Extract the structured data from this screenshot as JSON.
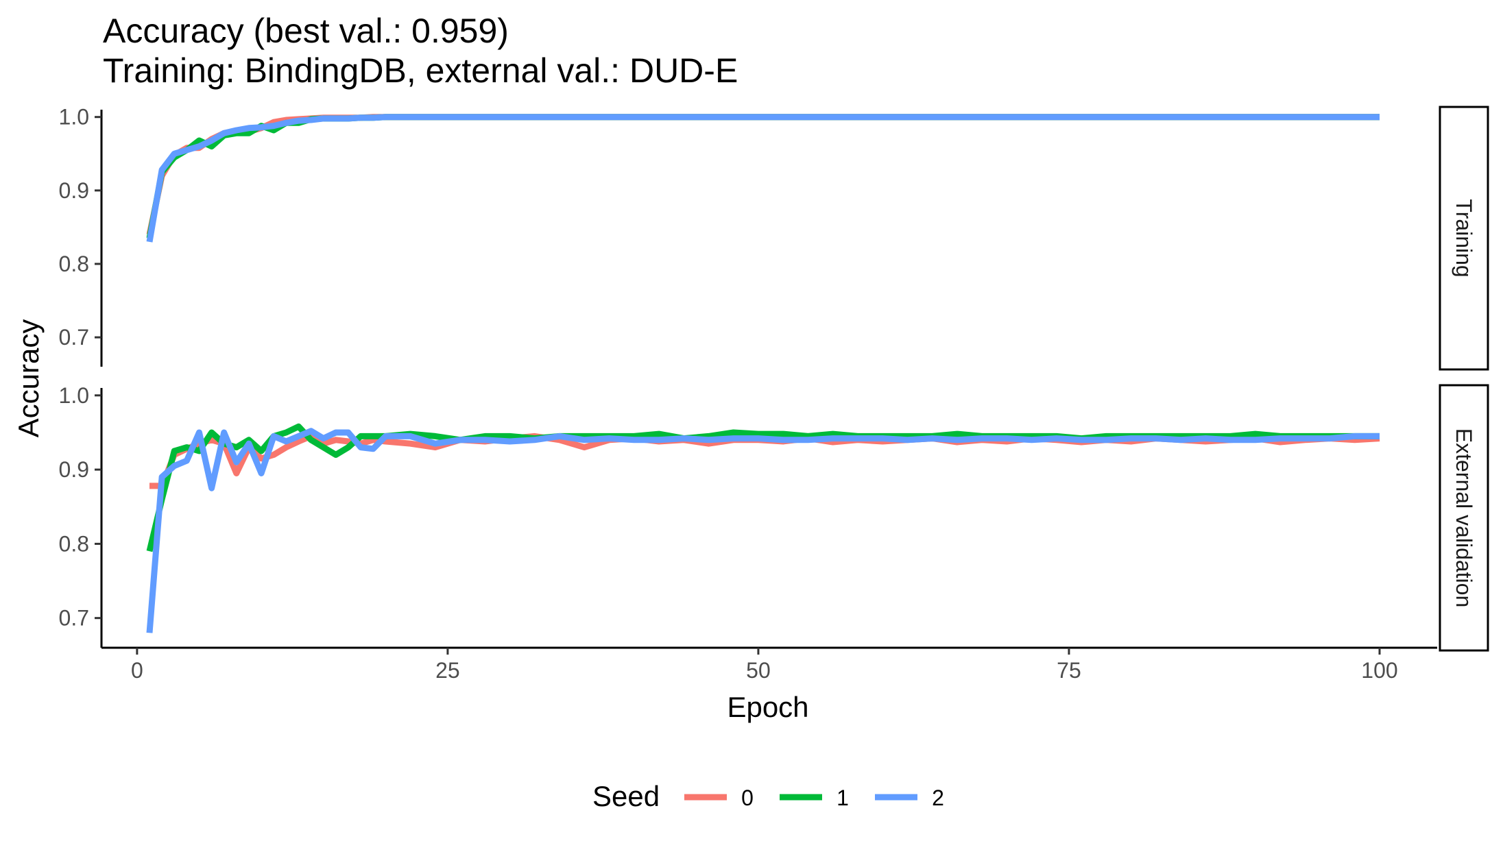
{
  "chart_data": {
    "type": "line",
    "title": "Accuracy (best val.: 0.959)",
    "subtitle": "Training: BindingDB, external val.: DUD-E",
    "xlabel": "Epoch",
    "ylabel": "Accuracy",
    "xlim": [
      1,
      100
    ],
    "x_ticks": [
      0,
      25,
      50,
      75,
      100
    ],
    "ylim": [
      0.66,
      1.01
    ],
    "y_ticks": [
      0.7,
      0.8,
      0.9,
      1.0
    ],
    "y_tick_labels": [
      "0.7",
      "0.8",
      "0.9",
      "1.0"
    ],
    "grid": false,
    "legend_title": "Seed",
    "legend_position": "bottom",
    "facets": [
      {
        "strip_label": "Training",
        "series": [
          {
            "name": "0",
            "color": "#F8766D",
            "x": [
              1,
              2,
              3,
              4,
              5,
              6,
              7,
              8,
              9,
              10,
              11,
              12,
              13,
              14,
              15,
              16,
              17,
              18,
              19,
              20,
              25,
              100
            ],
            "y": [
              0.84,
              0.92,
              0.948,
              0.958,
              0.958,
              0.97,
              0.978,
              0.98,
              0.98,
              0.985,
              0.993,
              0.996,
              0.997,
              0.998,
              0.999,
              0.999,
              0.999,
              0.999,
              1.0,
              1.0,
              1.0,
              1.0
            ]
          },
          {
            "name": "1",
            "color": "#00BA38",
            "x": [
              1,
              2,
              3,
              4,
              5,
              6,
              7,
              8,
              9,
              10,
              11,
              12,
              13,
              14,
              15,
              16,
              17,
              18,
              19,
              20,
              25,
              100
            ],
            "y": [
              0.835,
              0.925,
              0.945,
              0.955,
              0.968,
              0.96,
              0.975,
              0.978,
              0.978,
              0.988,
              0.982,
              0.992,
              0.992,
              0.997,
              0.998,
              0.998,
              0.998,
              0.999,
              0.999,
              1.0,
              1.0,
              1.0
            ]
          },
          {
            "name": "2",
            "color": "#619CFF",
            "x": [
              1,
              2,
              3,
              4,
              5,
              6,
              7,
              8,
              9,
              10,
              11,
              12,
              13,
              14,
              15,
              16,
              17,
              18,
              19,
              20,
              25,
              100
            ],
            "y": [
              0.83,
              0.928,
              0.95,
              0.955,
              0.96,
              0.968,
              0.978,
              0.982,
              0.985,
              0.986,
              0.988,
              0.992,
              0.995,
              0.996,
              0.998,
              0.998,
              0.998,
              0.999,
              0.999,
              1.0,
              1.0,
              1.0
            ]
          }
        ]
      },
      {
        "strip_label": "External validation",
        "series": [
          {
            "name": "0",
            "color": "#F8766D",
            "x": [
              1,
              2,
              3,
              4,
              5,
              6,
              7,
              8,
              9,
              10,
              11,
              12,
              13,
              14,
              15,
              16,
              17,
              18,
              19,
              20,
              22,
              24,
              26,
              28,
              30,
              32,
              34,
              36,
              38,
              40,
              42,
              44,
              46,
              48,
              50,
              52,
              54,
              56,
              58,
              60,
              62,
              64,
              66,
              68,
              70,
              72,
              74,
              76,
              78,
              80,
              82,
              84,
              86,
              88,
              90,
              92,
              94,
              96,
              98,
              100
            ],
            "y": [
              0.878,
              0.878,
              0.92,
              0.928,
              0.935,
              0.94,
              0.935,
              0.895,
              0.93,
              0.915,
              0.92,
              0.93,
              0.938,
              0.945,
              0.935,
              0.94,
              0.938,
              0.935,
              0.94,
              0.938,
              0.935,
              0.93,
              0.94,
              0.938,
              0.942,
              0.945,
              0.94,
              0.93,
              0.94,
              0.942,
              0.938,
              0.94,
              0.935,
              0.94,
              0.94,
              0.938,
              0.942,
              0.937,
              0.94,
              0.938,
              0.94,
              0.942,
              0.937,
              0.94,
              0.938,
              0.942,
              0.94,
              0.937,
              0.94,
              0.938,
              0.942,
              0.94,
              0.938,
              0.94,
              0.942,
              0.937,
              0.94,
              0.942,
              0.94,
              0.942
            ]
          },
          {
            "name": "1",
            "color": "#00BA38",
            "x": [
              1,
              2,
              3,
              4,
              5,
              6,
              7,
              8,
              9,
              10,
              11,
              12,
              13,
              14,
              15,
              16,
              17,
              18,
              19,
              20,
              22,
              24,
              26,
              28,
              30,
              32,
              34,
              36,
              38,
              40,
              42,
              44,
              46,
              48,
              50,
              52,
              54,
              56,
              58,
              60,
              62,
              64,
              66,
              68,
              70,
              72,
              74,
              76,
              78,
              80,
              82,
              84,
              86,
              88,
              90,
              92,
              94,
              96,
              98,
              100
            ],
            "y": [
              0.79,
              0.86,
              0.925,
              0.93,
              0.925,
              0.95,
              0.935,
              0.93,
              0.94,
              0.925,
              0.945,
              0.95,
              0.958,
              0.94,
              0.93,
              0.92,
              0.93,
              0.945,
              0.945,
              0.945,
              0.948,
              0.945,
              0.94,
              0.945,
              0.945,
              0.942,
              0.945,
              0.945,
              0.945,
              0.945,
              0.948,
              0.942,
              0.945,
              0.95,
              0.948,
              0.948,
              0.945,
              0.948,
              0.945,
              0.945,
              0.945,
              0.945,
              0.948,
              0.945,
              0.945,
              0.945,
              0.945,
              0.942,
              0.945,
              0.945,
              0.945,
              0.945,
              0.945,
              0.945,
              0.948,
              0.945,
              0.945,
              0.945,
              0.945,
              0.945
            ]
          },
          {
            "name": "2",
            "color": "#619CFF",
            "x": [
              1,
              2,
              3,
              4,
              5,
              6,
              7,
              8,
              9,
              10,
              11,
              12,
              13,
              14,
              15,
              16,
              17,
              18,
              19,
              20,
              22,
              24,
              26,
              28,
              30,
              32,
              34,
              36,
              38,
              40,
              42,
              44,
              46,
              48,
              50,
              52,
              54,
              56,
              58,
              60,
              62,
              64,
              66,
              68,
              70,
              72,
              74,
              76,
              78,
              80,
              82,
              84,
              86,
              88,
              90,
              92,
              94,
              96,
              98,
              100
            ],
            "y": [
              0.68,
              0.89,
              0.905,
              0.912,
              0.95,
              0.875,
              0.95,
              0.91,
              0.935,
              0.895,
              0.945,
              0.938,
              0.945,
              0.952,
              0.942,
              0.95,
              0.95,
              0.93,
              0.928,
              0.945,
              0.945,
              0.935,
              0.94,
              0.94,
              0.938,
              0.94,
              0.945,
              0.94,
              0.942,
              0.94,
              0.94,
              0.942,
              0.94,
              0.942,
              0.942,
              0.94,
              0.94,
              0.942,
              0.942,
              0.942,
              0.94,
              0.942,
              0.94,
              0.942,
              0.942,
              0.94,
              0.942,
              0.94,
              0.94,
              0.942,
              0.942,
              0.94,
              0.942,
              0.94,
              0.94,
              0.942,
              0.942,
              0.942,
              0.945,
              0.945
            ]
          }
        ]
      }
    ]
  }
}
